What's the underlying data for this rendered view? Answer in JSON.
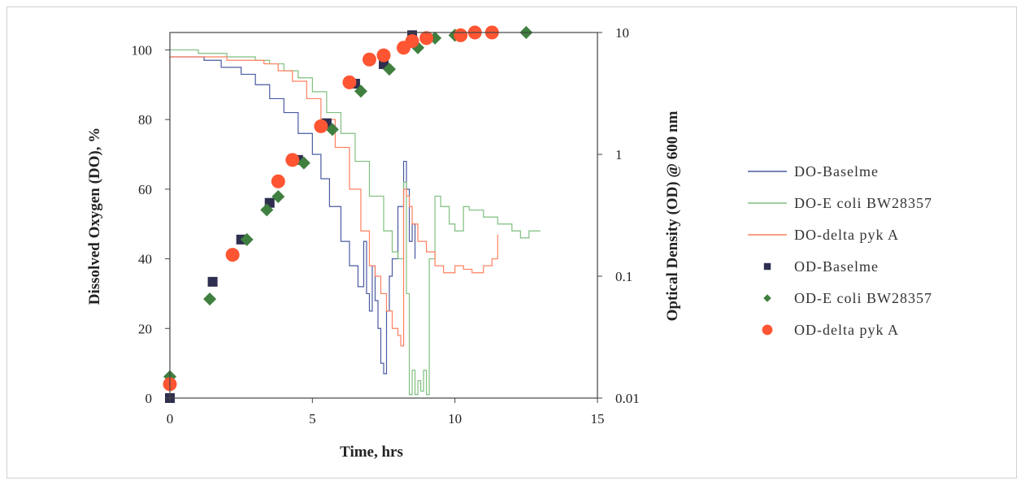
{
  "chart_data": {
    "type": "line+scatter",
    "xlabel": "Time, hrs",
    "ylabel_left": "Dissolved Oxygen (DO), %",
    "ylabel_right": "Optical Density (OD) @ 600 nm",
    "xlim": [
      0,
      15
    ],
    "xticks": [
      "0",
      "5",
      "10",
      "15"
    ],
    "ylim_left": [
      0,
      105
    ],
    "yticks_left": [
      "0",
      "20",
      "40",
      "60",
      "80",
      "100"
    ],
    "ylim_right": [
      0.01,
      10
    ],
    "yscale_right": "log",
    "yticks_right": [
      "0.01",
      "0.1",
      "1",
      "10"
    ],
    "legend_position": "right",
    "series": [
      {
        "name": "DO-Baselme",
        "kind": "line",
        "axis": "left",
        "color": "#4a5aa0",
        "x": [
          0,
          0.5,
          1.2,
          1.8,
          2.5,
          3,
          3.5,
          4,
          4.5,
          5,
          5.3,
          5.6,
          6,
          6.3,
          6.6,
          6.8,
          6.9,
          7.0,
          7.1,
          7.2,
          7.3,
          7.4,
          7.5,
          7.6,
          7.7,
          7.8,
          8.0,
          8.2,
          8.3,
          8.4,
          8.5,
          8.6
        ],
        "y": [
          98,
          98,
          97,
          95,
          93,
          90,
          86,
          82,
          76,
          70,
          63,
          55,
          45,
          38,
          32,
          45,
          30,
          25,
          38,
          28,
          20,
          10,
          7,
          25,
          35,
          40,
          55,
          68,
          60,
          45,
          50,
          40
        ]
      },
      {
        "name": "DO-E coli BW28357",
        "kind": "line",
        "axis": "left",
        "color": "#7fbf7f",
        "x": [
          0,
          1,
          2,
          3,
          3.5,
          4,
          4.5,
          5,
          5.5,
          6,
          6.5,
          7,
          7.5,
          7.8,
          8.0,
          8.2,
          8.3,
          8.4,
          8.5,
          8.6,
          8.7,
          8.8,
          8.9,
          9.0,
          9.1,
          9.3,
          9.5,
          9.8,
          10,
          10.3,
          10.5,
          11,
          11.5,
          12,
          12.3,
          12.6,
          13
        ],
        "y": [
          100,
          99,
          98,
          97,
          96,
          94,
          92,
          88,
          82,
          76,
          68,
          58,
          48,
          42,
          40,
          62,
          30,
          1,
          8,
          1,
          5,
          2,
          8,
          1,
          40,
          58,
          55,
          50,
          48,
          55,
          54,
          52,
          50,
          48,
          46,
          48,
          48
        ]
      },
      {
        "name": "DO-delta pyk A",
        "kind": "line",
        "axis": "left",
        "color": "#ff8060",
        "x": [
          0,
          1,
          2,
          2.8,
          3.3,
          3.8,
          4.3,
          4.8,
          5.3,
          5.8,
          6.3,
          6.7,
          7.0,
          7.2,
          7.4,
          7.6,
          7.8,
          8.0,
          8.1,
          8.2,
          8.3,
          8.4,
          8.5,
          8.7,
          9,
          9.3,
          9.6,
          10,
          10.3,
          10.6,
          11,
          11.3,
          11.5
        ],
        "y": [
          98,
          98,
          97,
          97,
          96,
          94,
          91,
          86,
          80,
          72,
          60,
          48,
          38,
          35,
          30,
          25,
          20,
          18,
          15,
          60,
          58,
          55,
          50,
          45,
          42,
          38,
          36,
          38,
          37,
          36,
          38,
          40,
          47
        ]
      },
      {
        "name": "OD-Baselme",
        "kind": "scatter",
        "axis": "right",
        "marker": "square",
        "color": "#2e2e50",
        "x": [
          0,
          1.5,
          2.5,
          3.5,
          4.5,
          5.5,
          6.5,
          7.5,
          8.5
        ],
        "y": [
          0.01,
          0.09,
          0.2,
          0.4,
          0.9,
          1.8,
          3.8,
          5.5,
          9.5
        ]
      },
      {
        "name": "OD-E coli BW28357",
        "kind": "scatter",
        "axis": "right",
        "marker": "diamond",
        "color": "#3f7f3f",
        "x": [
          0,
          1.4,
          2.7,
          3.4,
          3.8,
          4.7,
          5.7,
          6.7,
          7.7,
          8.7,
          9.3,
          10,
          12.5
        ],
        "y": [
          0.015,
          0.065,
          0.2,
          0.35,
          0.45,
          0.85,
          1.6,
          3.3,
          5.0,
          7.5,
          9.0,
          9.5,
          10
        ]
      },
      {
        "name": "OD-delta pyk A",
        "kind": "scatter",
        "axis": "right",
        "marker": "circle",
        "color": "#ff5533",
        "x": [
          0,
          2.2,
          3.8,
          4.3,
          5.3,
          6.3,
          7,
          7.5,
          8.2,
          8.5,
          9,
          10.2,
          10.7,
          11.3
        ],
        "y": [
          0.013,
          0.15,
          0.6,
          0.9,
          1.7,
          3.9,
          6,
          6.5,
          7.5,
          8.5,
          9,
          9.5,
          10,
          10
        ]
      }
    ]
  }
}
